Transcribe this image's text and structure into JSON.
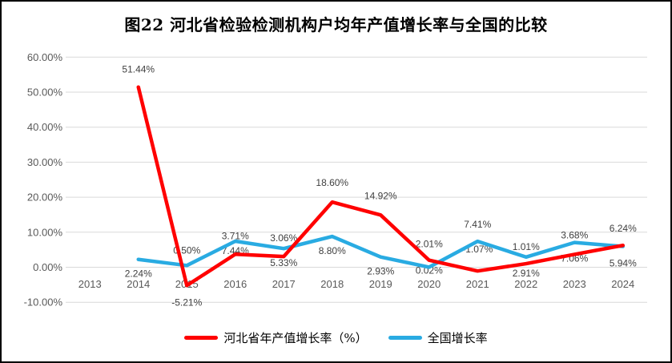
{
  "title": "图22  河北省检验检测机构户均年产值增长率与全国的比较",
  "chart_data": {
    "type": "line",
    "categories": [
      "2013",
      "2014",
      "2015",
      "2016",
      "2017",
      "2018",
      "2019",
      "2020",
      "2021",
      "2022",
      "2023",
      "2024"
    ],
    "series": [
      {
        "name": "河北省年产值增长率（%）",
        "color": "#FF0000",
        "values": [
          null,
          51.44,
          -5.21,
          3.71,
          3.06,
          18.6,
          14.92,
          2.01,
          -1.07,
          1.01,
          3.68,
          6.24
        ],
        "labels": [
          null,
          "51.44%",
          "-5.21%",
          "3.71%",
          "3.06%",
          "18.60%",
          "14.92%",
          "2.01%",
          "-1.07%",
          "1.01%",
          "3.68%",
          "6.24%"
        ],
        "label_dy": [
          null,
          -22,
          21,
          -23,
          -23,
          -24,
          -24,
          -20,
          -27,
          -21,
          -24,
          -21
        ]
      },
      {
        "name": "全国增长率",
        "color": "#29ABE2",
        "values": [
          null,
          2.24,
          0.5,
          7.44,
          5.33,
          8.8,
          2.93,
          0.02,
          7.41,
          2.91,
          7.06,
          5.94
        ],
        "labels": [
          null,
          "2.24%",
          "0.50%",
          "7.44%",
          "5.33%",
          "8.80%",
          "2.93%",
          "0.02%",
          "7.41%",
          "2.91%",
          "7.06%",
          "5.94%"
        ],
        "label_dy": [
          null,
          18,
          -19,
          12,
          18,
          18,
          18,
          4,
          -21,
          20,
          20,
          21
        ]
      }
    ],
    "y_ticks": [
      "60.00%",
      "50.00%",
      "40.00%",
      "30.00%",
      "20.00%",
      "10.00%",
      "0.00%",
      "-10.00%"
    ],
    "y_tick_values": [
      60,
      50,
      40,
      30,
      20,
      10,
      0,
      -10
    ],
    "ylim": [
      -10,
      60
    ],
    "grid": true,
    "legend_position": "bottom",
    "colors": {
      "gridline": "#D9D9D9",
      "axis_label": "#595959",
      "data_label": "#404040",
      "background": "#FFFFFF",
      "border": "#000000"
    }
  }
}
